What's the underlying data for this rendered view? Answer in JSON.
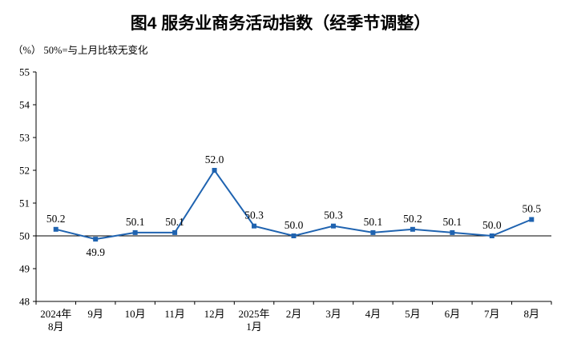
{
  "chart_data": {
    "type": "line",
    "title": "图4 服务业商务活动指数（经季节调整）",
    "subtitle": "（%） 50%=与上月比较无变化",
    "categories": [
      [
        "2024年",
        "8月"
      ],
      [
        "9月"
      ],
      [
        "10月"
      ],
      [
        "11月"
      ],
      [
        "12月"
      ],
      [
        "2025年",
        "1月"
      ],
      [
        "2月"
      ],
      [
        "3月"
      ],
      [
        "4月"
      ],
      [
        "5月"
      ],
      [
        "6月"
      ],
      [
        "7月"
      ],
      [
        "8月"
      ]
    ],
    "values": [
      50.2,
      49.9,
      50.1,
      50.1,
      52.0,
      50.3,
      50.0,
      50.3,
      50.1,
      50.2,
      50.1,
      50.0,
      50.5
    ],
    "ylim": [
      48,
      55
    ],
    "ytick_step": 1,
    "reference_value": 50,
    "xlabel": "",
    "ylabel": "",
    "grid": false,
    "legend": "none",
    "marker": "square",
    "line_color": "#1f63b0",
    "axis_color": "#000000",
    "label_color": "#000000"
  }
}
